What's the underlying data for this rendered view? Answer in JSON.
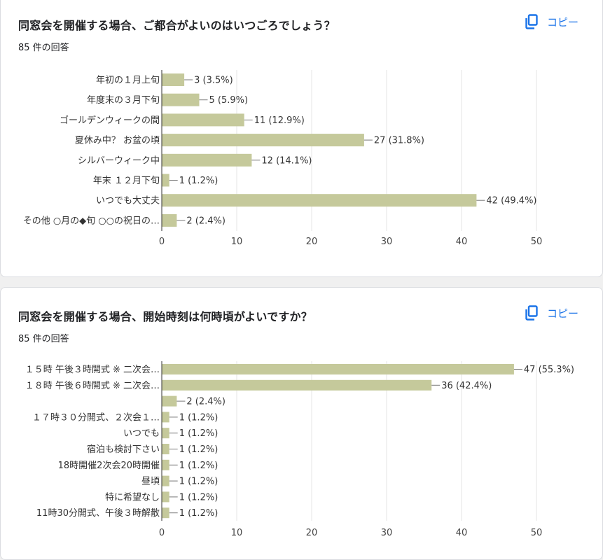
{
  "questions": [
    {
      "title": "同窓会を開催する場合、ご都合がよいのはいつごろでしょう？",
      "response_count": "85 件の回答",
      "copy_label": "コピー"
    },
    {
      "title": "同窓会を開催する場合、開始時刻は何時頃がよいですか？",
      "response_count": "85 件の回答",
      "copy_label": "コピー"
    }
  ],
  "colors": {
    "bar": "#c5c99b",
    "accent": "#1a73e8"
  },
  "chart_data": [
    {
      "type": "bar",
      "orientation": "horizontal",
      "categories": [
        "年初の１月上旬",
        "年度末の３月下旬",
        "ゴールデンウィークの間",
        "夏休み中？ お盆の頃",
        "シルバーウィーク中",
        "年末 １２月下旬",
        "いつでも大丈夫",
        "その他 ○月の◆旬 ○○の祝日の…"
      ],
      "values": [
        3,
        5,
        11,
        27,
        12,
        1,
        42,
        2
      ],
      "value_labels": [
        "3 (3.5%)",
        "5 (5.9%)",
        "11 (12.9%)",
        "27 (31.8%)",
        "12 (14.1%)",
        "1 (1.2%)",
        "42 (49.4%)",
        "2 (2.4%)"
      ],
      "xlim": [
        0,
        50
      ],
      "xticks": [
        "0",
        "10",
        "20",
        "30",
        "40",
        "50"
      ],
      "grid": true
    },
    {
      "type": "bar",
      "orientation": "horizontal",
      "categories": [
        "１５時 午後３時開式 ※ 二次会…",
        "１８時 午後６時開式 ※ 二次会…",
        "",
        "１７時３０分開式、２次会１…",
        "いつでも",
        "宿泊も検討下さい",
        "18時開催2次会20時開催",
        "昼頃",
        "特に希望なし",
        "11時30分開式、午後３時解散"
      ],
      "values": [
        47,
        36,
        2,
        1,
        1,
        1,
        1,
        1,
        1,
        1
      ],
      "value_labels": [
        "47 (55.3%)",
        "36 (42.4%)",
        "2 (2.4%)",
        "1 (1.2%)",
        "1 (1.2%)",
        "1 (1.2%)",
        "1 (1.2%)",
        "1 (1.2%)",
        "1 (1.2%)",
        "1 (1.2%)"
      ],
      "xlim": [
        0,
        50
      ],
      "xticks": [
        "0",
        "10",
        "20",
        "30",
        "40",
        "50"
      ],
      "grid": true
    }
  ]
}
